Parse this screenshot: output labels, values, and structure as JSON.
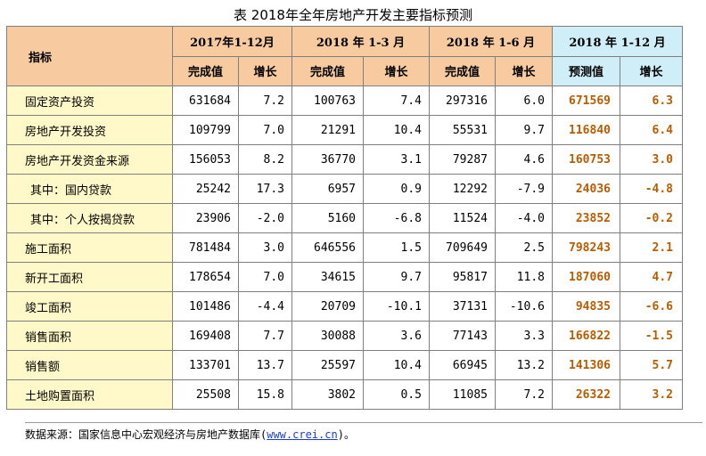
{
  "title": "表 2018年全年房地产开发主要指标预测",
  "header": {
    "indicator": "指标",
    "periods": [
      "2017年1-12月",
      "2018 年 1-3 月",
      "2018 年 1-6 月",
      "2018 年 1-12 月"
    ],
    "sub": [
      "完成值",
      "增长",
      "完成值",
      "增长",
      "完成值",
      "增长",
      "预测值",
      "增长"
    ]
  },
  "rows": [
    {
      "label": "固定资产投资",
      "values": [
        "631684",
        "7.2",
        "100763",
        "7.4",
        "297316",
        "6.0",
        "671569",
        "6.3"
      ]
    },
    {
      "label": "房地产开发投资",
      "values": [
        "109799",
        "7.0",
        "21291",
        "10.4",
        "55531",
        "9.7",
        "116840",
        "6.4"
      ]
    },
    {
      "label": "房地产开发资金来源",
      "values": [
        "156053",
        "8.2",
        "36770",
        "3.1",
        "79287",
        "4.6",
        "160753",
        "3.0"
      ]
    },
    {
      "label": "其中：国内贷款",
      "values": [
        "25242",
        "17.3",
        "6957",
        "0.9",
        "12292",
        "-7.9",
        "24036",
        "-4.8"
      ],
      "sub": true
    },
    {
      "label": "其中：个人按揭贷款",
      "values": [
        "23906",
        "-2.0",
        "5160",
        "-6.8",
        "11524",
        "-4.0",
        "23852",
        "-0.2"
      ],
      "sub": true
    },
    {
      "label": "施工面积",
      "values": [
        "781484",
        "3.0",
        "646556",
        "1.5",
        "709649",
        "2.5",
        "798243",
        "2.1"
      ]
    },
    {
      "label": "新开工面积",
      "values": [
        "178654",
        "7.0",
        "34615",
        "9.7",
        "95817",
        "11.8",
        "187060",
        "4.7"
      ]
    },
    {
      "label": "竣工面积",
      "values": [
        "101486",
        "-4.4",
        "20709",
        "-10.1",
        "37131",
        "-10.6",
        "94835",
        "-6.6"
      ]
    },
    {
      "label": "销售面积",
      "values": [
        "169408",
        "7.7",
        "30088",
        "3.6",
        "77143",
        "3.3",
        "166822",
        "-1.5"
      ]
    },
    {
      "label": "销售额",
      "values": [
        "133701",
        "13.7",
        "25597",
        "10.4",
        "66945",
        "13.2",
        "141306",
        "5.7"
      ]
    },
    {
      "label": "土地购置面积",
      "values": [
        "25508",
        "15.8",
        "3802",
        "0.5",
        "11085",
        "7.2",
        "26322",
        "3.2"
      ]
    }
  ],
  "footer": {
    "prefix": "数据来源：国家信息中心宏观经济与房地产数据库(",
    "link": "www.crei.cn",
    "suffix": ")。"
  },
  "colors": {
    "header_bg": "#f7cb9f",
    "prediction_header_bg": "#cfeef7",
    "label_bg": "#fff8c8",
    "prediction_text": "#b85c00"
  }
}
